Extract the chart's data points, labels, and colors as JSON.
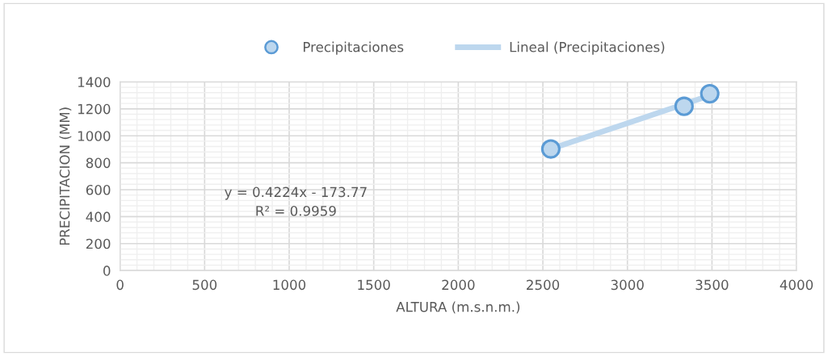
{
  "chart_data": {
    "type": "scatter",
    "xlabel": "ALTURA (m.s.n.m.)",
    "ylabel": "PRECIPITACION (MM)",
    "series": [
      {
        "name": "Precipitaciones",
        "marker": "circle",
        "color": "#5b9bd5",
        "x": [
          2547,
          3335,
          3487
        ],
        "values": [
          902,
          1219,
          1312
        ]
      },
      {
        "name": "Lineal (Precipitaciones)",
        "type": "line",
        "color": "#bdd7ee",
        "x": [
          2547,
          3487
        ],
        "values": [
          902,
          1299
        ]
      }
    ],
    "annotations": [
      "y = 0.4224x - 173.77",
      "R² = 0.9959"
    ],
    "xlim": [
      0,
      4000
    ],
    "xticks": [
      0,
      500,
      1000,
      1500,
      2000,
      2500,
      3000,
      3500,
      4000
    ],
    "ylim": [
      0,
      1400
    ],
    "yticks": [
      0,
      200,
      400,
      600,
      800,
      1000,
      1200,
      1400
    ],
    "grid": true,
    "legend": "top"
  }
}
